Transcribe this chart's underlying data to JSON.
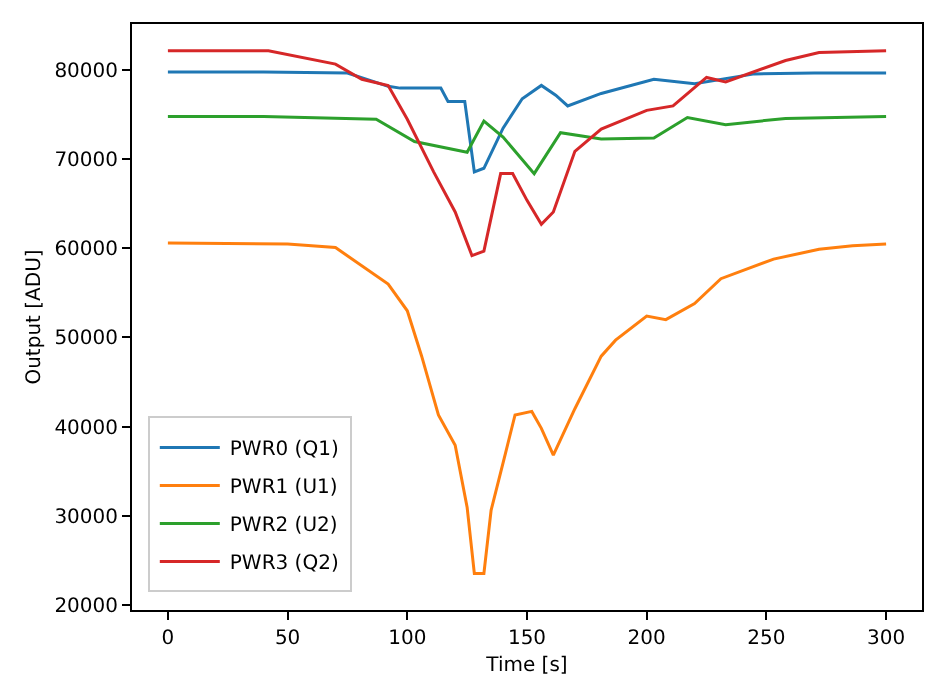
{
  "chart_data": {
    "type": "line",
    "xlabel": "Time [s]",
    "ylabel": "Output [ADU]",
    "xlim": [
      -15,
      315
    ],
    "ylim": [
      19400,
      85200
    ],
    "xticks": [
      0,
      50,
      100,
      150,
      200,
      250,
      300
    ],
    "yticks": [
      20000,
      30000,
      40000,
      50000,
      60000,
      70000,
      80000
    ],
    "legend": "bottom left",
    "marker": "none",
    "line_style": "solid",
    "series": [
      {
        "name": "PWR0 (Q1)",
        "color": "#1f77b4",
        "x": [
          0,
          40,
          75,
          92,
          97,
          114,
          117,
          124,
          128,
          132,
          140,
          148,
          156,
          162,
          167,
          181,
          203,
          220,
          245,
          270,
          300
        ],
        "values": [
          79800,
          79800,
          79700,
          78200,
          78000,
          78000,
          76500,
          76500,
          68600,
          69000,
          73500,
          76800,
          78300,
          77200,
          76000,
          77400,
          79000,
          78500,
          79600,
          79700,
          79700
        ]
      },
      {
        "name": "PWR1 (U1)",
        "color": "#ff7f0e",
        "x": [
          0,
          50,
          70,
          92,
          100,
          106,
          113,
          120,
          125,
          128,
          132,
          135,
          141,
          145,
          152,
          156,
          161,
          170,
          181,
          187,
          200,
          208,
          220,
          231,
          253,
          272,
          286,
          300
        ],
        "values": [
          60600,
          60500,
          60100,
          56000,
          53000,
          47900,
          41300,
          37900,
          30900,
          23500,
          23500,
          30600,
          37000,
          41300,
          41700,
          39800,
          36800,
          42000,
          47900,
          49700,
          52400,
          52000,
          53800,
          56600,
          58800,
          59900,
          60300,
          60500
        ]
      },
      {
        "name": "PWR2 (U2)",
        "color": "#2ca02c",
        "x": [
          0,
          40,
          87,
          103,
          125,
          132,
          140,
          153,
          164,
          181,
          203,
          217,
          233,
          258,
          300
        ],
        "values": [
          74800,
          74800,
          74500,
          72000,
          70800,
          74300,
          72500,
          68400,
          73000,
          72300,
          72400,
          74700,
          73900,
          74600,
          74800
        ]
      },
      {
        "name": "PWR3 (Q2)",
        "color": "#d62728",
        "x": [
          0,
          42,
          70,
          81,
          92,
          100,
          111,
          120,
          127,
          132,
          139,
          144,
          150,
          156,
          161,
          170,
          181,
          200,
          211,
          225,
          233,
          258,
          272,
          300
        ],
        "values": [
          82200,
          82200,
          80700,
          79000,
          78300,
          74500,
          68600,
          64100,
          59200,
          59700,
          68400,
          68400,
          65400,
          62700,
          64100,
          70900,
          73400,
          75500,
          76000,
          79200,
          78700,
          81100,
          82000,
          82200
        ]
      }
    ]
  }
}
